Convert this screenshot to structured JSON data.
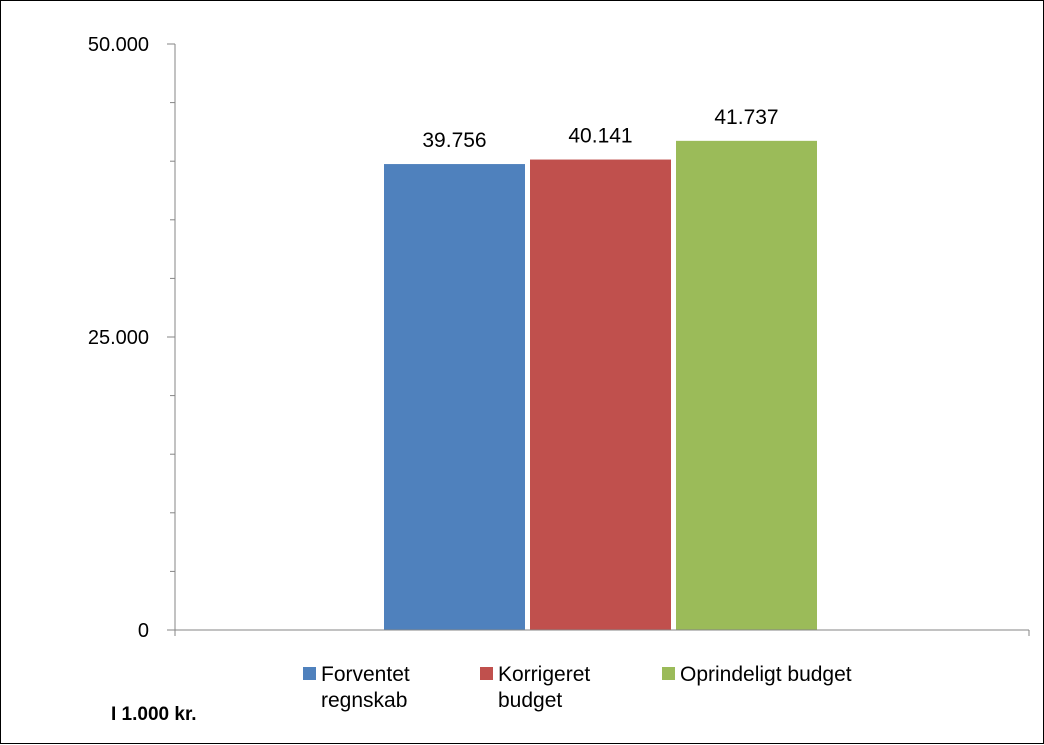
{
  "chart_data": {
    "type": "bar",
    "categories": [
      ""
    ],
    "series": [
      {
        "name": "Forventet regnskab",
        "values": [
          39756
        ],
        "label": "39.756",
        "color": "#4F81BD"
      },
      {
        "name": "Korrigeret budget",
        "values": [
          40141
        ],
        "label": "40.141",
        "color": "#C0504D"
      },
      {
        "name": "Oprindeligt budget",
        "values": [
          41737
        ],
        "label": "41.737",
        "color": "#9BBB59"
      }
    ],
    "ylim": [
      0,
      50000
    ],
    "yticks": [
      {
        "value": 0,
        "label": "0"
      },
      {
        "value": 25000,
        "label": "25.000"
      },
      {
        "value": 50000,
        "label": "50.000"
      }
    ],
    "minor_tick_step": 5000,
    "grid": false,
    "legend_position": "bottom",
    "unit_note": "I 1.000 kr."
  }
}
